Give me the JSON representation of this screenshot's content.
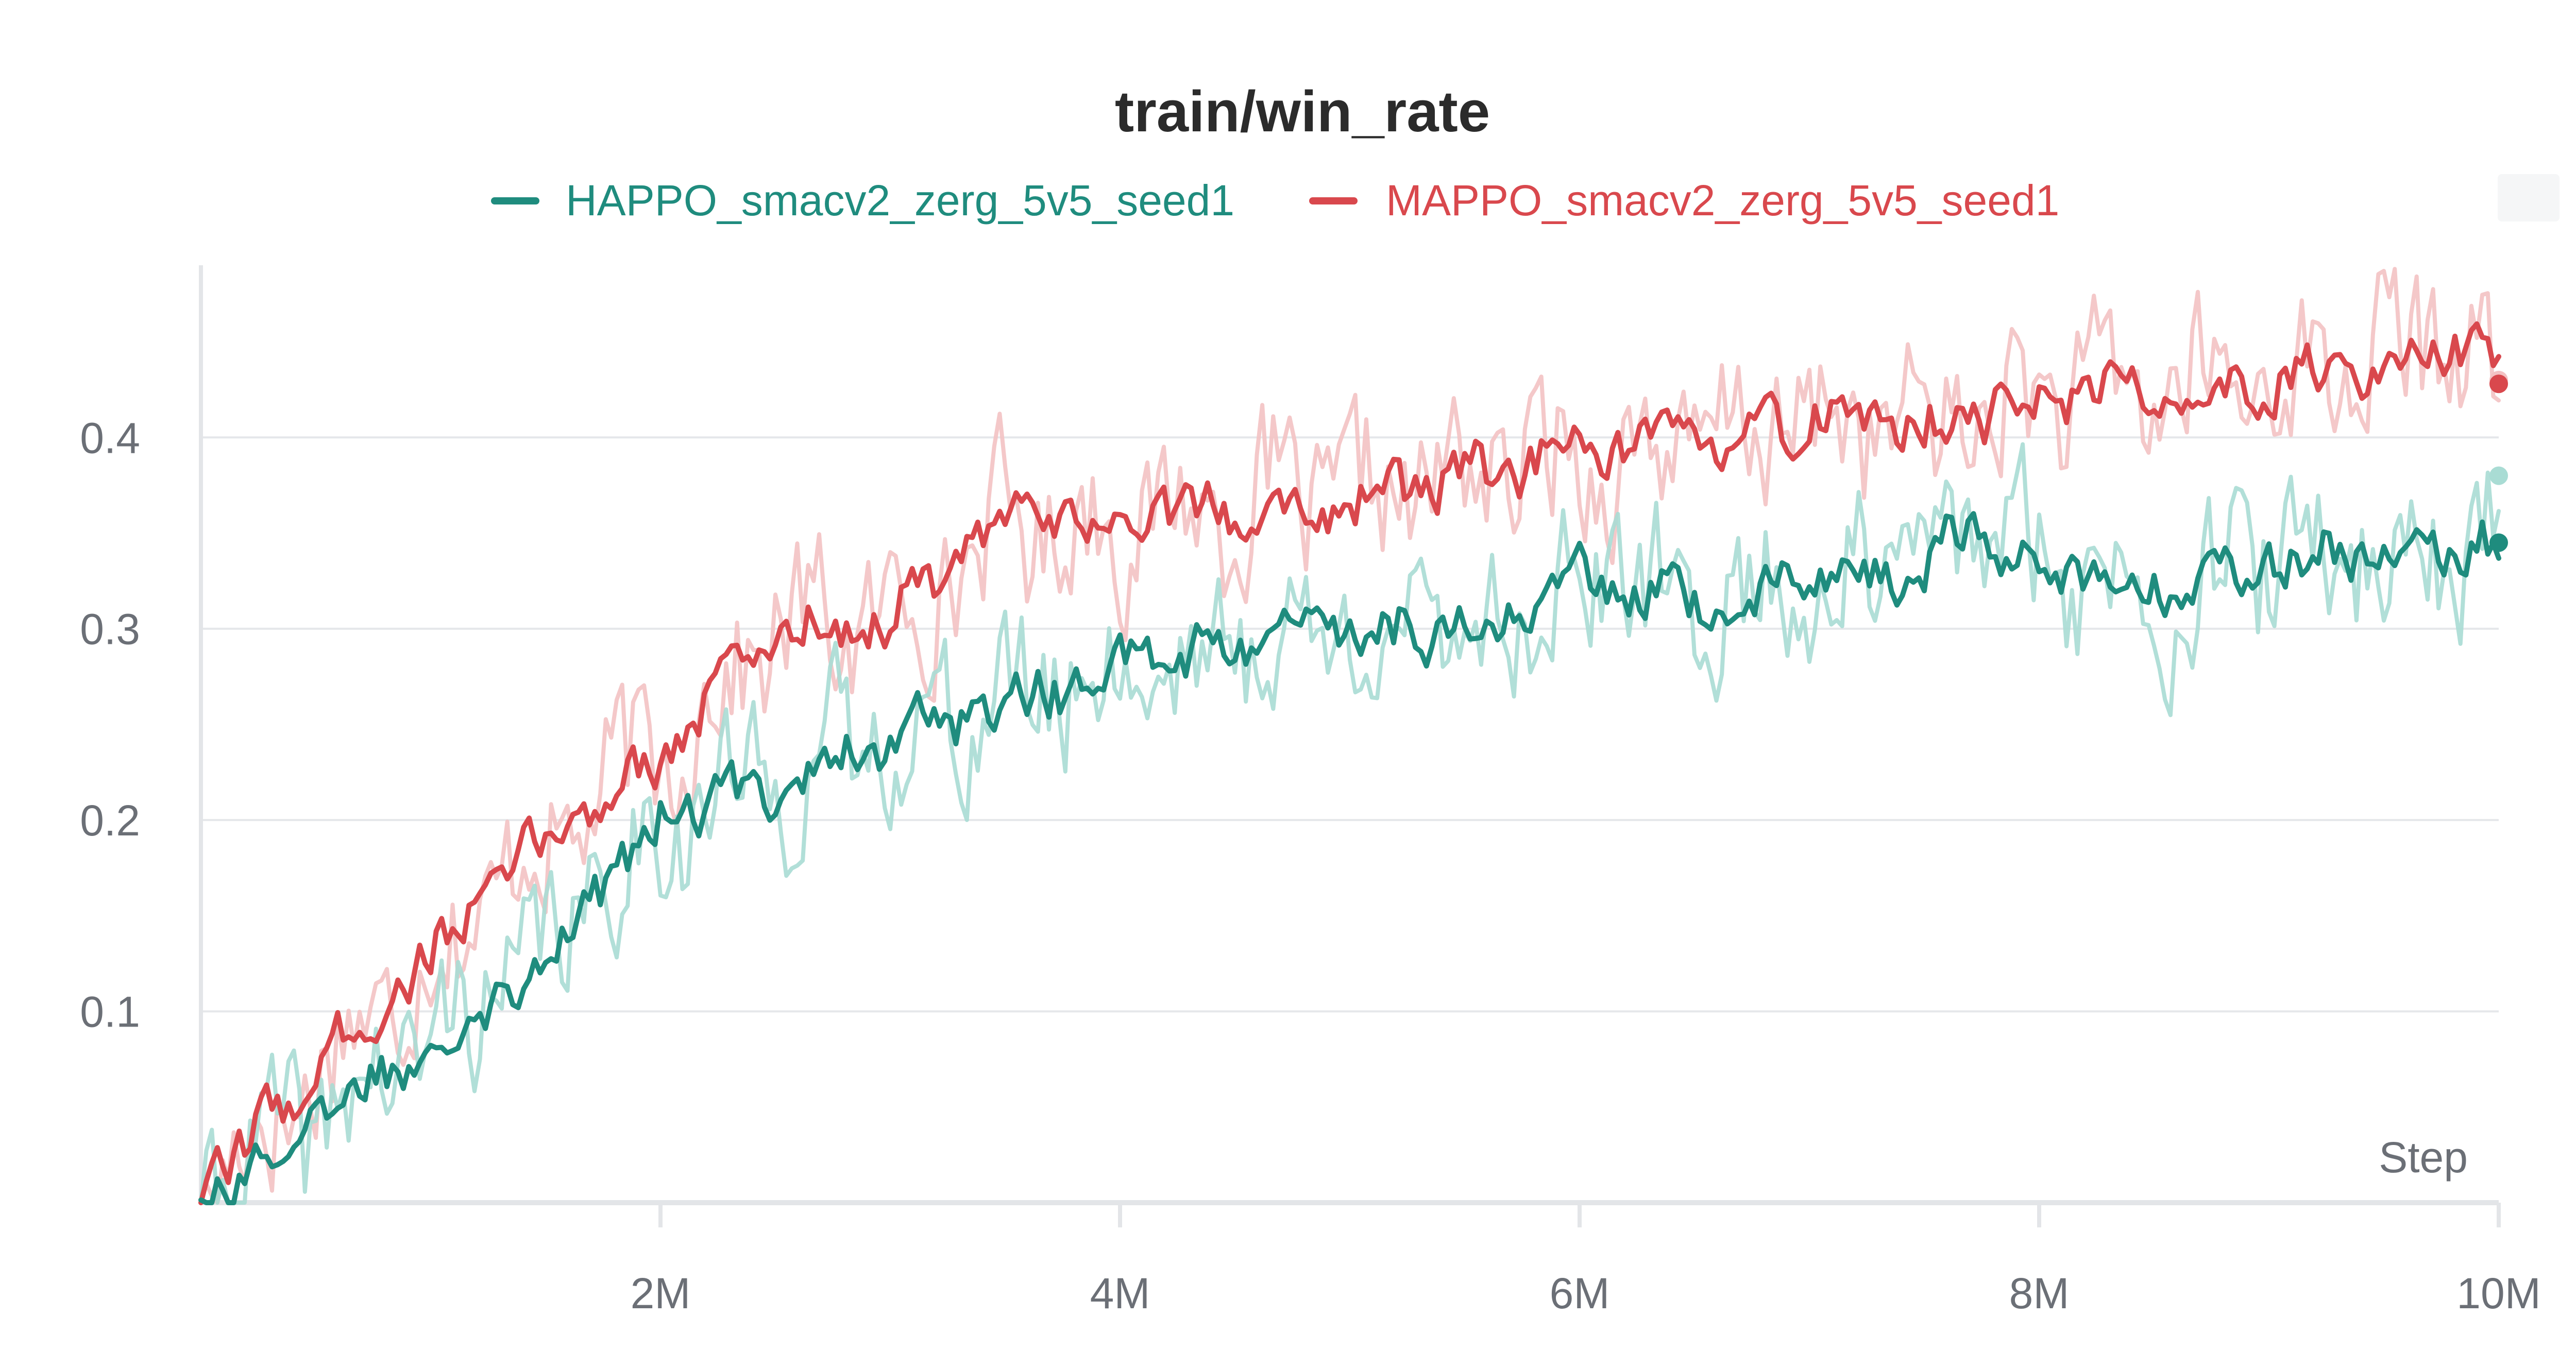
{
  "chart_data": {
    "type": "line",
    "title": "train/win_rate",
    "xlabel": "Step",
    "ylabel": "",
    "xlim": [
      0,
      10000000
    ],
    "ylim": [
      0,
      0.49
    ],
    "x_ticks": [
      2000000,
      4000000,
      6000000,
      8000000,
      10000000
    ],
    "x_tick_labels": [
      "2M",
      "4M",
      "6M",
      "8M",
      "10M"
    ],
    "y_ticks": [
      0.1,
      0.2,
      0.3,
      0.4
    ],
    "y_tick_labels": [
      "0.1",
      "0.2",
      "0.3",
      "0.4"
    ],
    "grid": true,
    "legend_position": "top",
    "series": [
      {
        "name": "HAPPO_smacv2_zerg_5v5_seed1",
        "color": "#1f8c7e",
        "raw_color": "#a9dcd4",
        "x": [
          0,
          500000,
          1000000,
          1500000,
          2000000,
          2500000,
          3000000,
          3500000,
          4000000,
          4500000,
          5000000,
          5500000,
          6000000,
          6500000,
          7000000,
          7500000,
          7700000,
          8000000,
          8500000,
          9000000,
          9500000,
          10000000
        ],
        "y": [
          0.005,
          0.04,
          0.085,
          0.13,
          0.2,
          0.22,
          0.245,
          0.26,
          0.28,
          0.29,
          0.3,
          0.3,
          0.325,
          0.31,
          0.325,
          0.33,
          0.355,
          0.335,
          0.32,
          0.335,
          0.34,
          0.345
        ],
        "final_value": 0.345,
        "final_raw_value": 0.38
      },
      {
        "name": "MAPPO_smacv2_zerg_5v5_seed1",
        "color": "#d9484d",
        "raw_color": "#f3c2c3",
        "x": [
          0,
          500000,
          1000000,
          1500000,
          2000000,
          2500000,
          3000000,
          3500000,
          4000000,
          4500000,
          5000000,
          5500000,
          6000000,
          6500000,
          7000000,
          7500000,
          8000000,
          8500000,
          9000000,
          9500000,
          9750000,
          10000000
        ],
        "y": [
          0.005,
          0.07,
          0.13,
          0.19,
          0.235,
          0.3,
          0.305,
          0.355,
          0.355,
          0.365,
          0.365,
          0.38,
          0.39,
          0.395,
          0.41,
          0.405,
          0.42,
          0.425,
          0.43,
          0.44,
          0.455,
          0.428
        ],
        "final_value": 0.428,
        "final_raw_value": 0.43
      }
    ]
  }
}
